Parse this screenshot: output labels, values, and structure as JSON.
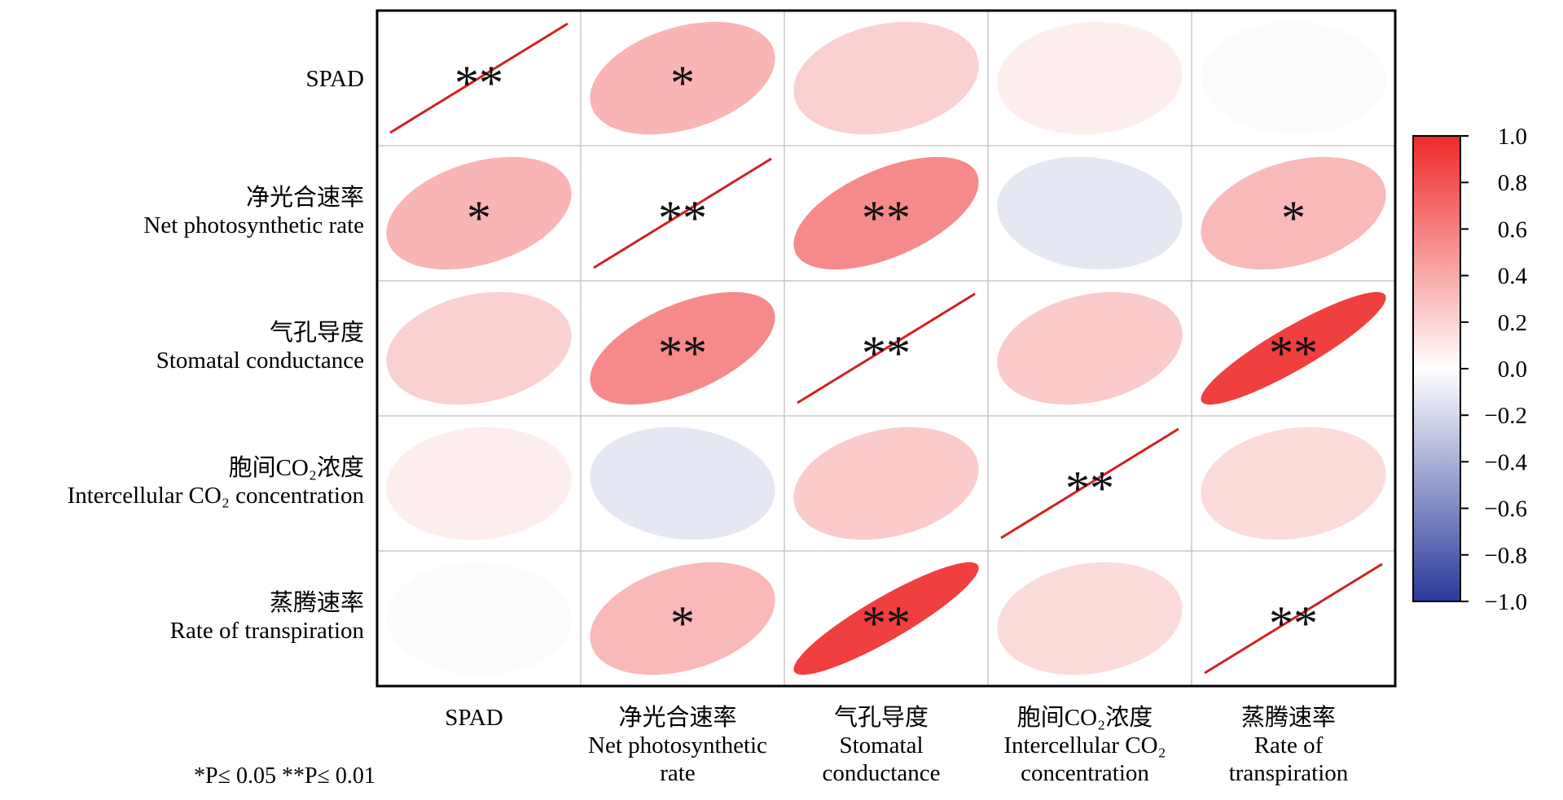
{
  "chart_data": {
    "type": "heatmap",
    "subtype": "correlation-ellipse-matrix",
    "variables": [
      {
        "zh": "",
        "en": "SPAD"
      },
      {
        "zh": "净光合速率",
        "en": "Net photosynthetic rate"
      },
      {
        "zh": "气孔导度",
        "en": "Stomatal conductance"
      },
      {
        "zh": "胞间CO₂浓度",
        "en": "Intercellular CO₂ concentration"
      },
      {
        "zh": "蒸腾速率",
        "en": "Rate of transpiration"
      }
    ],
    "column_labels": [
      {
        "zh": "",
        "en": [
          "SPAD"
        ]
      },
      {
        "zh": "净光合速率",
        "en": [
          "Net photosynthetic",
          "rate"
        ]
      },
      {
        "zh": "气孔导度",
        "en": [
          "Stomatal",
          "conductance"
        ]
      },
      {
        "zh": "胞间CO₂浓度",
        "en": [
          "Intercellular CO₂",
          "concentration"
        ]
      },
      {
        "zh": "蒸腾速率",
        "en": [
          "Rate of",
          "transpiration"
        ]
      }
    ],
    "matrix": [
      [
        1.0,
        0.35,
        0.22,
        0.08,
        -0.02
      ],
      [
        0.35,
        1.0,
        0.55,
        -0.12,
        0.33
      ],
      [
        0.22,
        0.55,
        1.0,
        0.25,
        0.9
      ],
      [
        0.08,
        -0.12,
        0.25,
        1.0,
        0.17
      ],
      [
        -0.02,
        0.33,
        0.9,
        0.17,
        1.0
      ]
    ],
    "significance": [
      [
        "**",
        "*",
        "",
        "",
        ""
      ],
      [
        "*",
        "**",
        "**",
        "",
        "*"
      ],
      [
        "",
        "**",
        "**",
        "",
        "**"
      ],
      [
        "",
        "",
        "",
        "**",
        ""
      ],
      [
        "",
        "*",
        "**",
        "",
        "**"
      ]
    ],
    "colorbar": {
      "range": [
        -1.0,
        1.0
      ],
      "ticks": [
        "1.0",
        "0.8",
        "0.6",
        "0.4",
        "0.2",
        "0.0",
        "−0.2",
        "−0.4",
        "−0.6",
        "−0.8",
        "−1.0"
      ],
      "colors": {
        "positive": "#ee2a2a",
        "zero": "#ffffff",
        "negative": "#2a3a9a"
      }
    },
    "diagonal_line_color": "#d42020",
    "grid": true
  },
  "footnote": "*P≤ 0.05  **P≤ 0.01"
}
